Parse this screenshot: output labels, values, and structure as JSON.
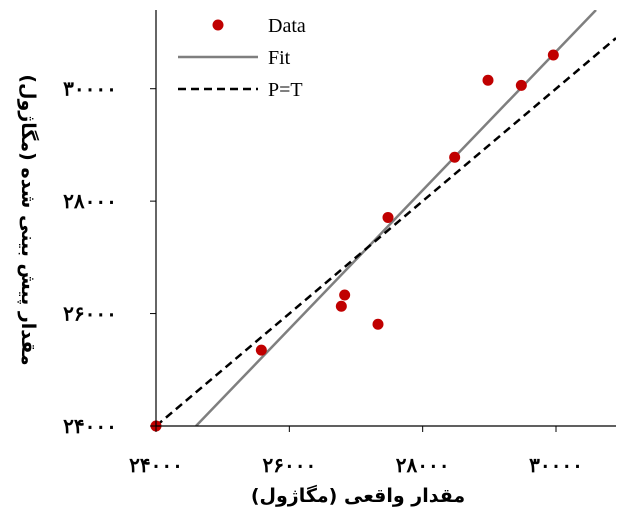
{
  "chart_data": {
    "type": "scatter",
    "title": "",
    "xlabel": "مقدار واقعی (مگاژول)",
    "ylabel": "مقدار پیش بینی شده (مگاژول)",
    "xlim": [
      24000,
      30900
    ],
    "ylim": [
      24000,
      31400
    ],
    "xticks": [
      24000,
      26000,
      28000,
      30000
    ],
    "yticks": [
      24000,
      26000,
      28000,
      30000
    ],
    "xtick_labels": [
      "۲۴۰۰۰",
      "۲۶۰۰۰",
      "۲۸۰۰۰",
      "۳۰۰۰۰"
    ],
    "ytick_labels": [
      "۲۴۰۰۰",
      "۲۶۰۰۰",
      "۲۸۰۰۰",
      "۳۰۰۰۰"
    ],
    "grid": false,
    "legend_position": "top-left",
    "series": [
      {
        "name": "Data",
        "kind": "points",
        "color": "#c00000",
        "x": [
          24000,
          25580,
          26780,
          26830,
          27330,
          27480,
          28480,
          28980,
          29480,
          29960
        ],
        "y": [
          24000,
          25350,
          26130,
          26330,
          25810,
          27710,
          28780,
          30150,
          30060,
          30600
        ]
      },
      {
        "name": "Fit",
        "kind": "line",
        "style": "solid",
        "color": "#7f7f7f",
        "x": [
          24600,
          30600
        ],
        "y": [
          24000,
          31400
        ]
      },
      {
        "name": "P=T",
        "kind": "line",
        "style": "dashed",
        "color": "#000000",
        "x": [
          24000,
          30900
        ],
        "y": [
          24000,
          30900
        ]
      }
    ]
  }
}
